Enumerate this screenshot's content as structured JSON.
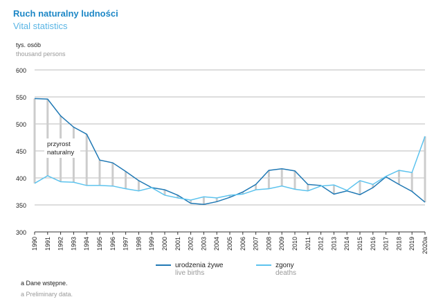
{
  "title": "Ruch naturalny ludności",
  "subtitle": "Vital statistics",
  "unit_pl": "tys. osób",
  "unit_en": "thousand persons",
  "annotation": [
    "przyrost",
    "naturalny"
  ],
  "footnote_pl": "a Dane wstępne.",
  "footnote_en": "a Preliminary data.",
  "colors": {
    "births": "#1f78b4",
    "deaths": "#5cc3ee",
    "gap": "#cccccc",
    "grid": "#bbbbbb"
  },
  "chart_data": {
    "type": "line",
    "ylim": [
      300,
      600
    ],
    "yticks": [
      300,
      350,
      400,
      450,
      500,
      550,
      600
    ],
    "grid": true,
    "legend_placement": "bottom",
    "categories": [
      "1990",
      "1991",
      "1992",
      "1993",
      "1994",
      "1995",
      "1996",
      "1997",
      "1998",
      "1999",
      "2000",
      "2001",
      "2002",
      "2003",
      "2004",
      "2005",
      "2006",
      "2007",
      "2008",
      "2009",
      "2010",
      "2011",
      "2012",
      "2013",
      "2014",
      "2015",
      "2016",
      "2017",
      "2018",
      "2019",
      "2020a"
    ],
    "series": [
      {
        "name": "urodzenia żywe",
        "name_en": "live births",
        "values": [
          547,
          546,
          515,
          494,
          481,
          433,
          428,
          412,
          395,
          382,
          378,
          368,
          353,
          351,
          356,
          364,
          374,
          388,
          414,
          417,
          413,
          388,
          386,
          370,
          376,
          369,
          382,
          402,
          388,
          375,
          355
        ]
      },
      {
        "name": "zgony",
        "name_en": "deaths",
        "values": [
          390,
          404,
          393,
          392,
          386,
          386,
          385,
          380,
          376,
          382,
          368,
          363,
          359,
          365,
          363,
          368,
          370,
          378,
          380,
          385,
          379,
          376,
          385,
          387,
          377,
          395,
          388,
          403,
          414,
          410,
          477
        ]
      }
    ]
  }
}
